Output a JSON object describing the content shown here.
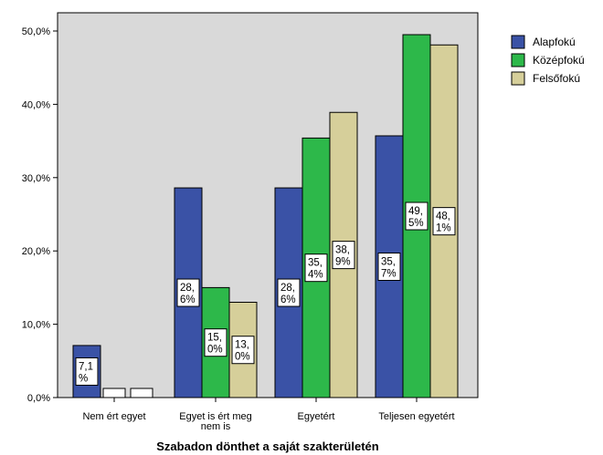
{
  "chart_data": {
    "type": "bar",
    "title": "",
    "xlabel": "Szabadon dönthet a saját szakterületén",
    "ylabel": "",
    "ylim": [
      0,
      50
    ],
    "yticks": [
      "0,0%",
      "10,0%",
      "20,0%",
      "30,0%",
      "40,0%",
      "50,0%"
    ],
    "categories": [
      {
        "lines": [
          "Nem ért egyet"
        ]
      },
      {
        "lines": [
          "Egyet is ért meg",
          "nem is"
        ]
      },
      {
        "lines": [
          "Egyetért"
        ]
      },
      {
        "lines": [
          "Teljesen egyetért"
        ]
      }
    ],
    "series": [
      {
        "name": "Alapfokú",
        "color": "#3a52a6",
        "values": [
          7.1,
          28.6,
          28.6,
          35.7
        ],
        "labels": [
          [
            "7,1",
            "%"
          ],
          [
            "28,",
            "6%"
          ],
          [
            "28,",
            "6%"
          ],
          [
            "35,",
            "7%"
          ]
        ]
      },
      {
        "name": "Középfokú",
        "color": "#2db84a",
        "values": [
          0,
          15.0,
          35.4,
          49.5
        ],
        "labels": [
          [
            "",
            ""
          ],
          [
            "15,",
            "0%"
          ],
          [
            "35,",
            "4%"
          ],
          [
            "49,",
            "5%"
          ]
        ]
      },
      {
        "name": "Felsőfokú",
        "color": "#d6cf9a",
        "values": [
          0,
          13.0,
          38.9,
          48.1
        ],
        "labels": [
          [
            "",
            ""
          ],
          [
            "13,",
            "0%"
          ],
          [
            "38,",
            "9%"
          ],
          [
            "48,",
            "1%"
          ]
        ]
      }
    ],
    "plot_background": "#d9d9d9",
    "legend": "right",
    "grid": false
  }
}
